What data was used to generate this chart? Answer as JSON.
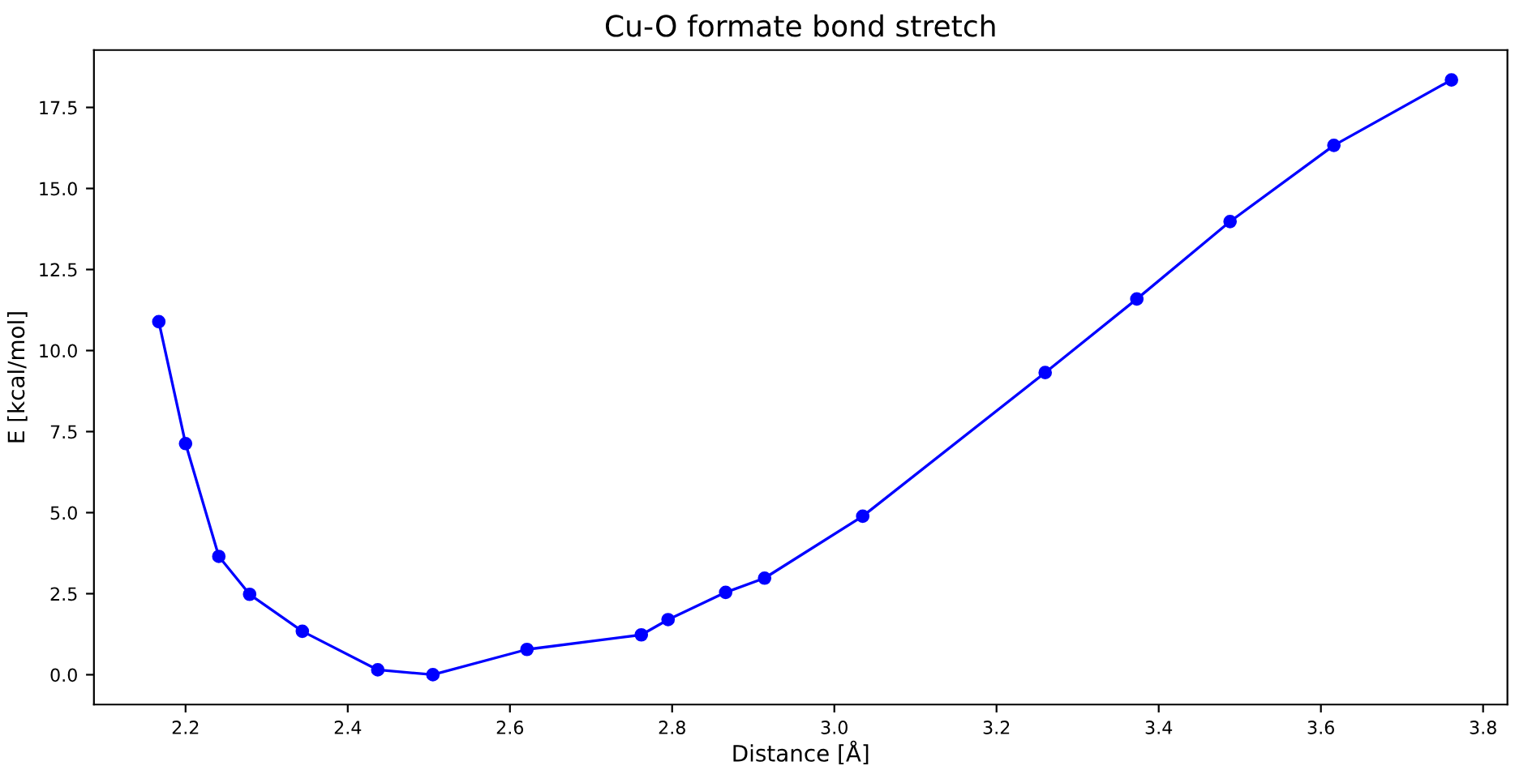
{
  "chart_data": {
    "type": "line",
    "title": "Cu-O formate bond stretch",
    "xlabel": "Distance [Å]",
    "ylabel": "E [kcal/mol]",
    "x": [
      2.167,
      2.2,
      2.241,
      2.279,
      2.344,
      2.437,
      2.505,
      2.621,
      2.762,
      2.795,
      2.866,
      2.914,
      3.035,
      3.26,
      3.373,
      3.488,
      3.616,
      3.761
    ],
    "series": [
      {
        "color": "#0000ff",
        "values": [
          10.89,
          7.13,
          3.65,
          2.48,
          1.34,
          0.15,
          0.0,
          0.78,
          1.23,
          1.7,
          2.54,
          2.98,
          4.89,
          9.32,
          11.59,
          13.98,
          16.33,
          18.35
        ]
      }
    ],
    "xlim": [
      2.087,
      3.83
    ],
    "ylim": [
      -0.92,
      19.27
    ],
    "xticks": [
      {
        "value": 2.2,
        "label": "2.2"
      },
      {
        "value": 2.4,
        "label": "2.4"
      },
      {
        "value": 2.6,
        "label": "2.6"
      },
      {
        "value": 2.8,
        "label": "2.8"
      },
      {
        "value": 3.0,
        "label": "3.0"
      },
      {
        "value": 3.2,
        "label": "3.2"
      },
      {
        "value": 3.4,
        "label": "3.4"
      },
      {
        "value": 3.6,
        "label": "3.6"
      },
      {
        "value": 3.8,
        "label": "3.8"
      }
    ],
    "yticks": [
      {
        "value": 0,
        "label": "0.0"
      },
      {
        "value": 2.5,
        "label": "2.5"
      },
      {
        "value": 5,
        "label": "5.0"
      },
      {
        "value": 7.5,
        "label": "7.5"
      },
      {
        "value": 10,
        "label": "10.0"
      },
      {
        "value": 12.5,
        "label": "12.5"
      },
      {
        "value": 15,
        "label": "15.0"
      },
      {
        "value": 17.5,
        "label": "17.5"
      }
    ],
    "marker": "circle",
    "line_style": "solid",
    "grid": false,
    "legend": false
  }
}
